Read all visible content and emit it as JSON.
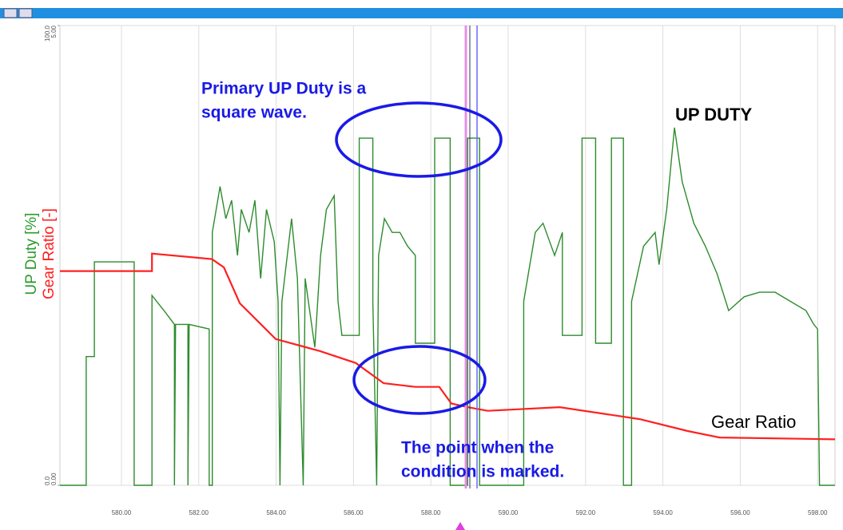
{
  "chart_data": {
    "type": "line",
    "ylabel": "UP Duty [%]",
    "y2label": "Gear Ratio [-]",
    "annotations": [
      {
        "text": [
          "Primary UP Duty is a",
          "square wave."
        ]
      },
      {
        "text": [
          "The point when the",
          "condition is marked."
        ]
      }
    ],
    "xlim": [
      578.41,
      598.45
    ],
    "xticks": [
      {
        "value": 580,
        "label": "580.00"
      },
      {
        "value": 582,
        "label": "582.00"
      },
      {
        "value": 584,
        "label": "584.00"
      },
      {
        "value": 586,
        "label": "586.00"
      },
      {
        "value": 588,
        "label": "588.00"
      },
      {
        "value": 590,
        "label": "590.00"
      },
      {
        "value": 592,
        "label": "592.00"
      },
      {
        "value": 594,
        "label": "594.00"
      },
      {
        "value": 596,
        "label": "596.00"
      },
      {
        "value": 598,
        "label": "598.00"
      }
    ],
    "ylim": [
      0,
      100
    ],
    "yticks": [
      {
        "value": 0,
        "label": "0.0"
      },
      {
        "value": 100,
        "label": "100.0"
      }
    ],
    "y2lim": [
      0,
      5
    ],
    "y2ticks": [
      {
        "value": 0,
        "label": "0.00"
      },
      {
        "value": 5,
        "label": "5.00"
      }
    ],
    "grid": true,
    "series": [
      {
        "name": "UP DUTY",
        "color": "#2e8b2e",
        "x": [
          578.41,
          579.09,
          579.09,
          579.3,
          579.3,
          580.33,
          580.33,
          580.79,
          580.79,
          581.1,
          581.37,
          581.37,
          581.4,
          581.72,
          581.72,
          581.75,
          582.27,
          582.27,
          582.35,
          582.35,
          582.55,
          582.7,
          582.85,
          583.0,
          583.1,
          583.3,
          583.45,
          583.6,
          583.75,
          583.95,
          584.05,
          584.1,
          584.15,
          584.4,
          584.55,
          584.7,
          584.75,
          585.0,
          585.15,
          585.3,
          585.5,
          585.6,
          585.7,
          586.15,
          586.15,
          586.5,
          586.5,
          586.6,
          586.65,
          586.8,
          587.0,
          587.2,
          587.4,
          587.6,
          587.6,
          588.1,
          588.1,
          588.5,
          588.5,
          588.95,
          588.95,
          589.26,
          589.26,
          590.4,
          590.4,
          590.7,
          590.9,
          591.2,
          591.4,
          591.4,
          591.91,
          591.91,
          592.26,
          592.26,
          592.67,
          592.67,
          592.98,
          592.98,
          593.19,
          593.19,
          593.5,
          593.8,
          593.9,
          594.1,
          594.3,
          594.5,
          594.8,
          595.1,
          595.4,
          595.7,
          596.1,
          596.5,
          596.9,
          597.3,
          597.7,
          597.9,
          598.0,
          598.05,
          598.45
        ],
        "values": [
          0,
          0,
          28,
          28,
          48.6,
          48.6,
          0,
          0,
          41.3,
          38,
          35,
          0,
          35,
          35,
          0,
          35,
          34,
          0,
          0,
          55,
          65,
          58,
          62,
          50,
          60,
          55,
          62,
          45,
          60,
          53,
          40,
          0,
          40,
          58,
          45,
          0,
          45,
          30,
          50,
          60,
          63,
          40,
          32.6,
          32.6,
          75.5,
          75.5,
          40,
          0,
          50,
          58,
          55,
          55,
          52,
          50,
          30.9,
          30.9,
          75.5,
          75.5,
          0,
          0,
          75.5,
          75.5,
          0,
          0,
          40,
          55,
          57,
          50,
          55,
          32.6,
          32.6,
          75.5,
          75.5,
          30.9,
          30.9,
          75.5,
          75.5,
          0,
          0,
          40,
          52,
          55,
          48,
          60,
          77.8,
          66,
          57,
          52,
          46,
          38,
          41,
          42,
          42,
          40,
          38,
          35,
          34,
          0,
          0
        ]
      },
      {
        "name": "Gear Ratio",
        "color": "#ff2020",
        "axis": "y2",
        "x": [
          578.41,
          580.79,
          580.79,
          582.34,
          582.65,
          583.06,
          583.99,
          585.13,
          586.06,
          586.78,
          587.6,
          588.22,
          588.53,
          588.95,
          589.47,
          591.33,
          593.4,
          594.64,
          595.46,
          598.45
        ],
        "values": [
          2.33,
          2.33,
          2.52,
          2.46,
          2.37,
          1.98,
          1.59,
          1.46,
          1.33,
          1.11,
          1.07,
          1.07,
          0.89,
          0.85,
          0.81,
          0.85,
          0.72,
          0.59,
          0.52,
          0.5
        ]
      }
    ]
  }
}
